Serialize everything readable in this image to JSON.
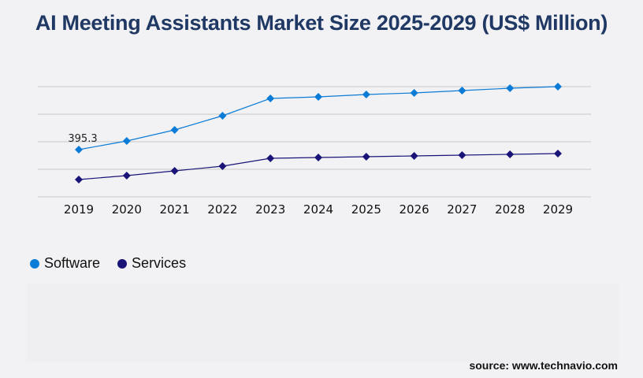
{
  "title": "AI Meeting Assistants Market Size 2025-2029 (US$ Million)",
  "source": "source: www.technavio.com",
  "chart_data": {
    "type": "line",
    "title": "AI Meeting Assistants Market Size 2025-2029 (US$ Million)",
    "categories": [
      "2019",
      "2020",
      "2021",
      "2022",
      "2023",
      "2024",
      "2025",
      "2026",
      "2027",
      "2028",
      "2029"
    ],
    "series": [
      {
        "name": "Software",
        "color": "#0a7bd6",
        "values": [
          395.3,
          467.8,
          560.0,
          678.6,
          823.5,
          836.7,
          856.5,
          869.7,
          889.4,
          909.2,
          922.4
        ]
      },
      {
        "name": "Services",
        "color": "#1a1478",
        "values": [
          144.9,
          177.9,
          217.4,
          256.9,
          322.8,
          329.4,
          336.0,
          342.6,
          349.2,
          355.8,
          362.4
        ]
      }
    ],
    "data_labels": [
      {
        "series": "Software",
        "category": "2019",
        "text": "395.3"
      }
    ],
    "ylim": [
      0,
      922.4
    ],
    "grid": true,
    "legend": "bottom-left"
  }
}
